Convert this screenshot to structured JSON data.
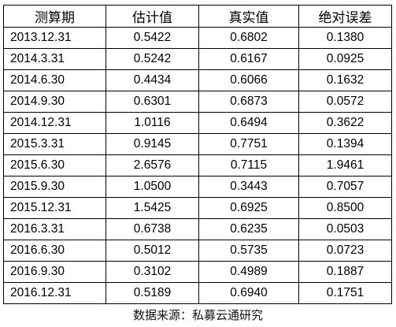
{
  "table": {
    "headers": [
      "测算期",
      "估计值",
      "真实值",
      "绝对误差"
    ],
    "rows": [
      [
        "2013.12.31",
        "0.5422",
        "0.6802",
        "0.1380"
      ],
      [
        "2014.3.31",
        "0.5242",
        "0.6167",
        "0.0925"
      ],
      [
        "2014.6.30",
        "0.4434",
        "0.6066",
        "0.1632"
      ],
      [
        "2014.9.30",
        "0.6301",
        "0.6873",
        "0.0572"
      ],
      [
        "2014.12.31",
        "1.0116",
        "0.6494",
        "0.3622"
      ],
      [
        "2015.3.31",
        "0.9145",
        "0.7751",
        "0.1394"
      ],
      [
        "2015.6.30",
        "2.6576",
        "0.7115",
        "1.9461"
      ],
      [
        "2015.9.30",
        "1.0500",
        "0.3443",
        "0.7057"
      ],
      [
        "2015.12.31",
        "1.5425",
        "0.6925",
        "0.8500"
      ],
      [
        "2016.3.31",
        "0.6738",
        "0.6235",
        "0.0503"
      ],
      [
        "2016.6.30",
        "0.5012",
        "0.5735",
        "0.0723"
      ],
      [
        "2016.9.30",
        "0.3102",
        "0.4989",
        "0.1887"
      ],
      [
        "2016.12.31",
        "0.5189",
        "0.6940",
        "0.1751"
      ]
    ]
  },
  "source": "数据来源：私募云通研究"
}
